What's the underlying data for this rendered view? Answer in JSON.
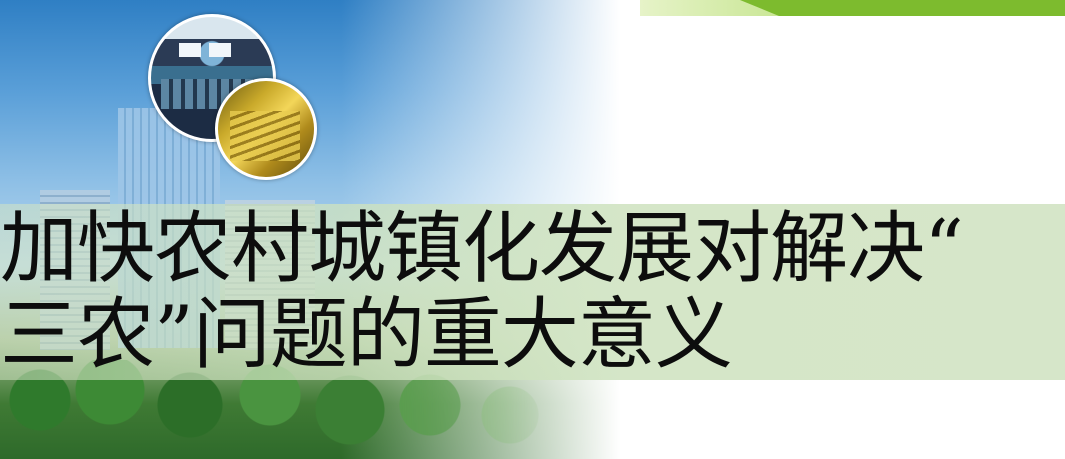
{
  "title": {
    "line1": "加快农村城镇化发展对解决“",
    "line2": "三农”问题的重大意义"
  },
  "colors": {
    "accent_green": "#7dbb2e",
    "title_band": "#d6e6c9",
    "title_text": "#0d0d0d"
  },
  "images": {
    "circle_1": "control-room-photo",
    "circle_2": "machine-photo",
    "background": "city-skyline-photo"
  }
}
